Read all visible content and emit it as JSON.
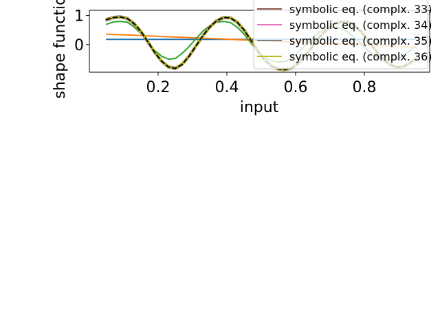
{
  "chart_data": {
    "type": "line",
    "title": "",
    "xlabel": "input",
    "ylabel": "shape function",
    "xlim": [
      0.0,
      0.99
    ],
    "ylim": [
      -0.95,
      1.18
    ],
    "xticks": [
      0.2,
      0.4,
      0.6,
      0.8
    ],
    "xtick_labels": [
      "0.2",
      "0.4",
      "0.6",
      "0.8"
    ],
    "yticks": [
      0,
      1
    ],
    "ytick_labels": [
      "0",
      "1"
    ],
    "grid": false,
    "legend_position": "top-right",
    "x": [
      0.05,
      0.07,
      0.09,
      0.11,
      0.13,
      0.15,
      0.17,
      0.19,
      0.21,
      0.23,
      0.25,
      0.27,
      0.29,
      0.31,
      0.33,
      0.35,
      0.37,
      0.39,
      0.41,
      0.43,
      0.45,
      0.47,
      0.49,
      0.51,
      0.53,
      0.55,
      0.57,
      0.59,
      0.61,
      0.63,
      0.65,
      0.67,
      0.69,
      0.71,
      0.73,
      0.75,
      0.77,
      0.79,
      0.81,
      0.83,
      0.85,
      0.87,
      0.89,
      0.91,
      0.93,
      0.95
    ],
    "series": [
      {
        "color": "#1f77b4",
        "values": [
          0.18,
          0.18,
          0.18,
          0.18,
          0.18,
          0.18,
          0.18,
          0.18,
          0.18,
          0.18,
          0.18,
          0.18,
          0.18,
          0.18,
          0.18,
          0.18,
          0.18,
          0.18,
          0.18,
          0.18,
          0.18,
          0.18,
          0.18,
          0.18,
          0.18,
          0.18,
          0.18,
          0.18,
          0.18,
          0.18,
          0.18,
          0.18,
          0.18,
          0.18,
          0.18,
          0.18,
          0.18,
          0.18,
          0.18,
          0.18,
          0.18,
          0.18,
          0.18,
          0.18,
          0.18,
          0.18
        ]
      },
      {
        "color": "#ff7f0e",
        "values": [
          0.36,
          0.35,
          0.34,
          0.33,
          0.32,
          0.31,
          0.3,
          0.29,
          0.28,
          0.27,
          0.26,
          0.25,
          0.24,
          0.23,
          0.22,
          0.21,
          0.2,
          0.19,
          0.18,
          0.17,
          0.16,
          0.15,
          0.14,
          0.13,
          0.12,
          0.11,
          0.1,
          0.09,
          0.08,
          0.07,
          0.06,
          0.05,
          0.04,
          0.03,
          0.02,
          0.01,
          0.0,
          -0.01,
          -0.02,
          -0.03,
          -0.04,
          -0.05,
          -0.06,
          -0.07,
          -0.08,
          -0.09
        ]
      },
      {
        "color": "#2ca02c",
        "values": [
          0.7,
          0.78,
          0.8,
          0.77,
          0.61,
          0.38,
          0.09,
          -0.2,
          -0.4,
          -0.5,
          -0.48,
          -0.3,
          -0.07,
          0.2,
          0.46,
          0.65,
          0.77,
          0.8,
          0.76,
          0.6,
          0.36,
          0.05,
          -0.22,
          -0.44,
          -0.56,
          -0.6,
          -0.58,
          -0.46,
          -0.24,
          0.0,
          0.24,
          0.44,
          0.57,
          0.6,
          0.56,
          0.45,
          0.26,
          0.03,
          -0.2,
          -0.38,
          -0.5,
          -0.55,
          -0.52,
          -0.4,
          -0.23,
          -0.05
        ]
      },
      {
        "color": "#d62728",
        "values": [
          0.85,
          0.93,
          0.95,
          0.9,
          0.72,
          0.45,
          0.1,
          -0.27,
          -0.57,
          -0.77,
          -0.82,
          -0.68,
          -0.4,
          -0.05,
          0.3,
          0.6,
          0.82,
          0.93,
          0.92,
          0.77,
          0.5,
          0.15,
          -0.22,
          -0.53,
          -0.74,
          -0.84,
          -0.86,
          -0.8,
          -0.62,
          -0.36,
          -0.05,
          0.26,
          0.52,
          0.7,
          0.78,
          0.78,
          0.66,
          0.45,
          0.15,
          -0.16,
          -0.45,
          -0.66,
          -0.77,
          -0.78,
          -0.66,
          -0.48
        ]
      },
      {
        "color": "#9467bd",
        "values": [
          0.84,
          0.92,
          0.94,
          0.89,
          0.71,
          0.44,
          0.09,
          -0.28,
          -0.58,
          -0.78,
          -0.83,
          -0.69,
          -0.41,
          -0.06,
          0.29,
          0.59,
          0.81,
          0.92,
          0.91,
          0.76,
          0.49,
          0.14,
          -0.23,
          -0.54,
          -0.75,
          -0.85,
          -0.87,
          -0.81,
          -0.63,
          -0.37,
          -0.06,
          0.25,
          0.51,
          0.69,
          0.77,
          0.77,
          0.65,
          0.44,
          0.14,
          -0.17,
          -0.46,
          -0.67,
          -0.78,
          -0.79,
          -0.67,
          -0.49
        ]
      },
      {
        "name": "symbolic eq. (complx. 33)",
        "color": "#8c564b",
        "values": [
          0.87,
          0.94,
          0.96,
          0.91,
          0.73,
          0.46,
          0.11,
          -0.26,
          -0.56,
          -0.76,
          -0.81,
          -0.67,
          -0.39,
          -0.04,
          0.31,
          0.61,
          0.83,
          0.94,
          0.93,
          0.78,
          0.51,
          0.16,
          -0.21,
          -0.52,
          -0.73,
          -0.83,
          -0.85,
          -0.79,
          -0.61,
          -0.35,
          -0.04,
          0.27,
          0.53,
          0.71,
          0.79,
          0.79,
          0.67,
          0.46,
          0.16,
          -0.15,
          -0.44,
          -0.65,
          -0.76,
          -0.77,
          -0.65,
          -0.47
        ]
      },
      {
        "name": "symbolic eq. (complx. 34)",
        "color": "#e377c2",
        "values": [
          0.86,
          0.93,
          0.95,
          0.9,
          0.72,
          0.45,
          0.1,
          -0.27,
          -0.57,
          -0.77,
          -0.82,
          -0.68,
          -0.4,
          -0.05,
          0.3,
          0.6,
          0.82,
          0.93,
          0.92,
          0.77,
          0.5,
          0.15,
          -0.22,
          -0.53,
          -0.74,
          -0.84,
          -0.86,
          -0.8,
          -0.62,
          -0.36,
          -0.05,
          0.26,
          0.52,
          0.7,
          0.78,
          0.78,
          0.66,
          0.45,
          0.15,
          -0.16,
          -0.45,
          -0.66,
          -0.77,
          -0.78,
          -0.66,
          -0.48
        ]
      },
      {
        "name": "symbolic eq. (complx. 35)",
        "color": "#7f7f7f",
        "values": [
          0.86,
          0.94,
          0.96,
          0.91,
          0.73,
          0.46,
          0.1,
          -0.27,
          -0.57,
          -0.77,
          -0.82,
          -0.68,
          -0.4,
          -0.05,
          0.3,
          0.6,
          0.82,
          0.94,
          0.93,
          0.78,
          0.51,
          0.15,
          -0.22,
          -0.53,
          -0.74,
          -0.84,
          -0.86,
          -0.8,
          -0.62,
          -0.36,
          -0.05,
          0.26,
          0.52,
          0.7,
          0.79,
          0.79,
          0.67,
          0.46,
          0.15,
          -0.16,
          -0.45,
          -0.66,
          -0.77,
          -0.78,
          -0.66,
          -0.48
        ]
      },
      {
        "name": "symbolic eq. (complx. 36)",
        "color": "#bcbd22",
        "values": [
          0.86,
          0.93,
          0.95,
          0.9,
          0.72,
          0.45,
          0.1,
          -0.27,
          -0.57,
          -0.77,
          -0.82,
          -0.68,
          -0.4,
          -0.05,
          0.3,
          0.6,
          0.82,
          0.93,
          0.92,
          0.77,
          0.5,
          0.15,
          -0.22,
          -0.53,
          -0.74,
          -0.84,
          -0.86,
          -0.8,
          -0.62,
          -0.36,
          -0.05,
          0.26,
          0.52,
          0.7,
          0.78,
          0.78,
          0.66,
          0.45,
          0.15,
          -0.16,
          -0.45,
          -0.66,
          -0.77,
          -0.78,
          -0.66,
          -0.48
        ]
      },
      {
        "color": "#000000",
        "dashed": true,
        "values": [
          0.86,
          0.93,
          0.95,
          0.9,
          0.72,
          0.45,
          0.1,
          -0.27,
          -0.57,
          -0.77,
          -0.82,
          -0.68,
          -0.4,
          -0.05,
          0.3,
          0.6,
          0.82,
          0.93,
          0.92,
          0.77,
          0.5,
          0.15,
          -0.22,
          -0.53,
          -0.74,
          -0.84,
          -0.86,
          -0.8,
          -0.62,
          -0.36,
          -0.05,
          0.26,
          0.52,
          0.7,
          0.78,
          0.78,
          0.66,
          0.45,
          0.15,
          -0.16,
          -0.45,
          -0.66,
          -0.77,
          -0.78,
          -0.66,
          -0.48
        ]
      }
    ]
  }
}
